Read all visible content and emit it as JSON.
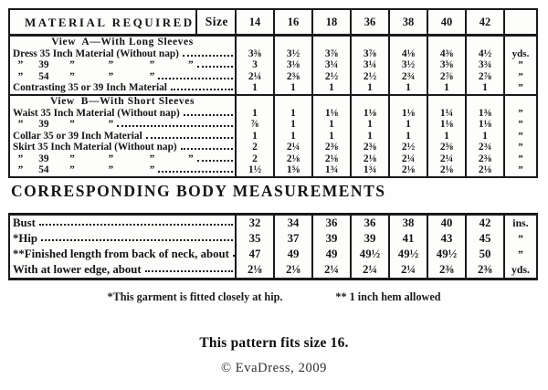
{
  "material_table": {
    "title": "MATERIAL REQUIRED",
    "size_label": "Size",
    "sizes": [
      "14",
      "16",
      "18",
      "36",
      "38",
      "40",
      "42"
    ],
    "view_a": {
      "title": "View  A—With Long Sleeves",
      "rows": [
        {
          "label": "Dress 35 Inch Material (Without nap)",
          "values": [
            "3⅜",
            "3½",
            "3⅞",
            "3⅞",
            "4⅛",
            "4⅜",
            "4½"
          ],
          "unit": "yds."
        },
        {
          "label": "  ”      39        ”             ”              ”             ”",
          "values": [
            "3",
            "3⅛",
            "3¼",
            "3¼",
            "3½",
            "3⅝",
            "3¾"
          ],
          "unit": "”"
        },
        {
          "label": "  ”      54        ”             ”              ”",
          "values": [
            "2¼",
            "2⅜",
            "2½",
            "2½",
            "2¾",
            "2⅞",
            "2⅞"
          ],
          "unit": "”"
        },
        {
          "label": "Contrasting 35 or 39 Inch Material",
          "values": [
            "1",
            "1",
            "1",
            "1",
            "1",
            "1",
            "1"
          ],
          "unit": "”"
        }
      ]
    },
    "view_b": {
      "title": "View  B—With Short Sleeves",
      "rows": [
        {
          "label": "Waist 35 Inch Material (Without nap)",
          "values": [
            "1",
            "1",
            "1⅛",
            "1⅛",
            "1⅛",
            "1¼",
            "1⅜"
          ],
          "unit": "”"
        },
        {
          "label": "  ”      39        ”             ”",
          "values": [
            "⅞",
            "1",
            "1",
            "1",
            "1",
            "1⅛",
            "1⅛"
          ],
          "unit": "”"
        },
        {
          "label": "Collar 35 or 39 Inch Material",
          "values": [
            "1",
            "1",
            "1",
            "1",
            "1",
            "1",
            "1"
          ],
          "unit": "”"
        },
        {
          "label": "Skirt 35 Inch Material (Without nap)",
          "values": [
            "2",
            "2¼",
            "2⅜",
            "2⅜",
            "2½",
            "2⅝",
            "2¾"
          ],
          "unit": "”"
        },
        {
          "label": "  ”      39        ”             ”              ”             ”",
          "values": [
            "2",
            "2⅛",
            "2⅛",
            "2⅛",
            "2¼",
            "2¼",
            "2⅜"
          ],
          "unit": "”"
        },
        {
          "label": "  ”      54        ”             ”              ”",
          "values": [
            "1½",
            "1⅝",
            "1¾",
            "1¾",
            "2⅛",
            "2⅛",
            "2⅛"
          ],
          "unit": "”"
        }
      ]
    }
  },
  "body_table": {
    "heading": "CORRESPONDING BODY MEASUREMENTS",
    "rows": [
      {
        "label": "Bust",
        "values": [
          "32",
          "34",
          "36",
          "36",
          "38",
          "40",
          "42"
        ],
        "unit": "ins."
      },
      {
        "label": "*Hip",
        "values": [
          "35",
          "37",
          "39",
          "39",
          "41",
          "43",
          "45"
        ],
        "unit": "”"
      },
      {
        "label": "**Finished length from back of neck, about",
        "values": [
          "47",
          "49",
          "49",
          "49½",
          "49½",
          "49½",
          "50"
        ],
        "unit": "”"
      },
      {
        "label": "With at lower edge, about",
        "values": [
          "2⅛",
          "2⅛",
          "2¼",
          "2¼",
          "2¼",
          "2⅜",
          "2⅜"
        ],
        "unit": "yds."
      }
    ]
  },
  "footnotes": {
    "hip_note": "*This garment is fitted closely at hip.",
    "hem_note": "** 1 inch hem allowed"
  },
  "page": {
    "caption": "This pattern fits size 16.",
    "copyright": "© EvaDress, 2009"
  }
}
